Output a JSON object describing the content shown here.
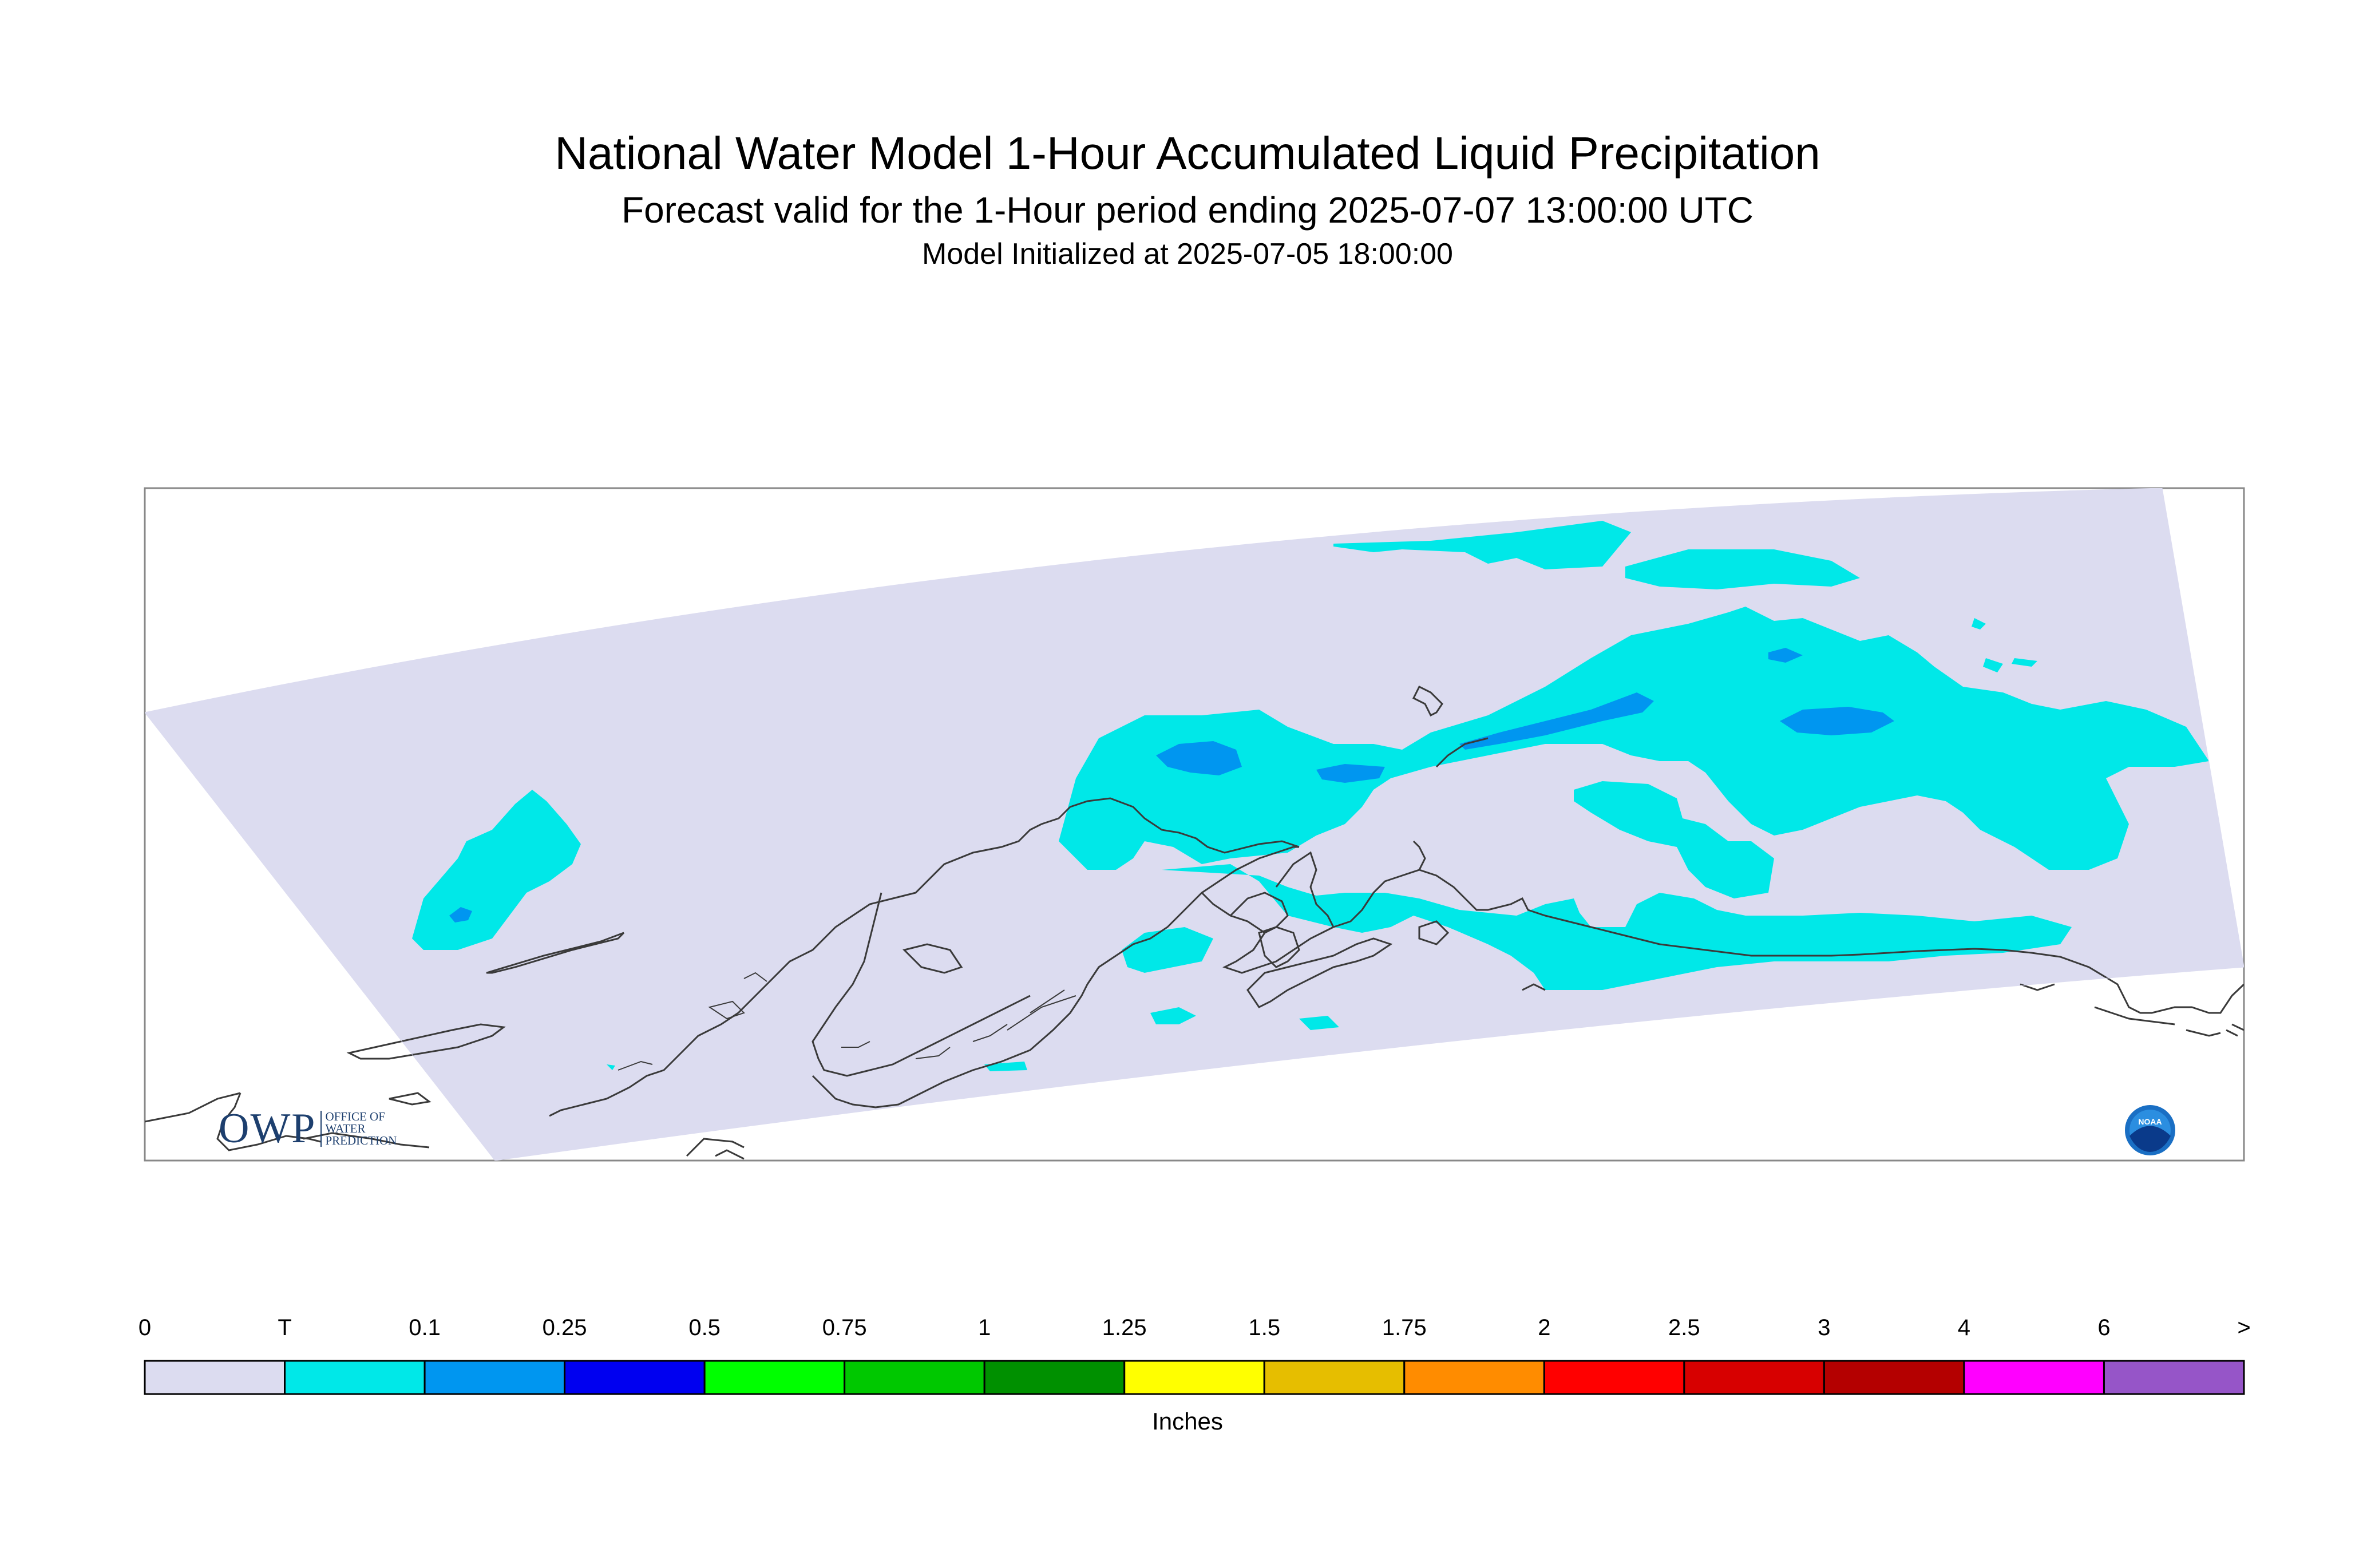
{
  "title": "National Water Model 1-Hour Accumulated Liquid Precipitation",
  "subtitle": "Forecast valid for the 1-Hour period ending 2025-07-07 13:00:00 UTC",
  "init_time": "Model Initialized at 2025-07-05 18:00:00",
  "legend": {
    "units": "Inches",
    "labels": [
      "0",
      "T",
      "0.1",
      "0.25",
      "0.5",
      "0.75",
      "1",
      "1.25",
      "1.5",
      "1.75",
      "2",
      "2.5",
      "3",
      "4",
      "6",
      ">"
    ],
    "colors": [
      "#dcdcf0",
      "#00e8e8",
      "#0096f0",
      "#0000f0",
      "#00ff00",
      "#00c800",
      "#009000",
      "#ffff00",
      "#e6be00",
      "#ff8c00",
      "#ff0000",
      "#d70000",
      "#b40000",
      "#ff00ff",
      "#9655c8"
    ]
  },
  "logos": {
    "owp_big": "OWP",
    "owp_small": [
      "OFFICE OF",
      "WATER",
      "PREDICTION"
    ],
    "noaa": "NOAA"
  },
  "icons": [
    "owp-logo",
    "noaa-logo"
  ]
}
